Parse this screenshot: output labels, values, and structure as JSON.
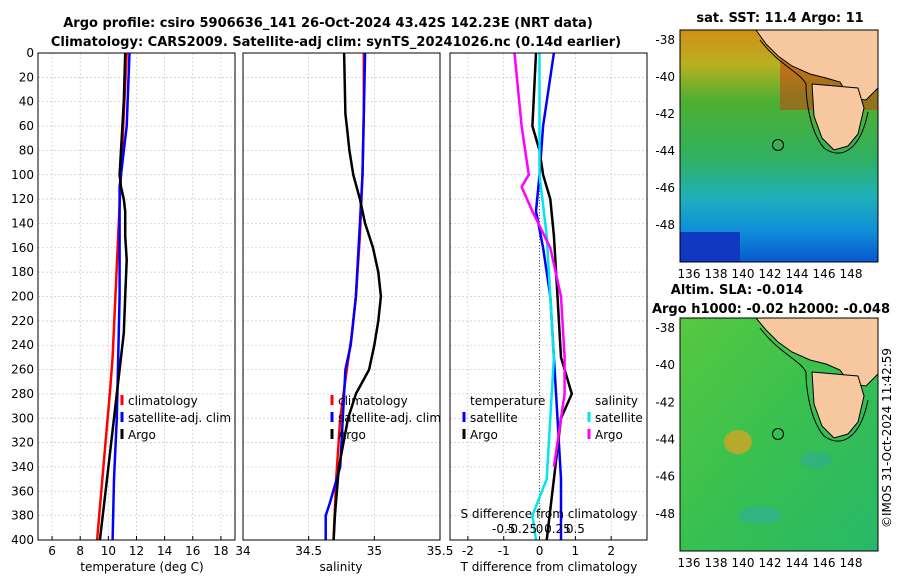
{
  "header": {
    "line1": "Argo profile: csiro 5906636_141 26-Oct-2024 43.42S 142.23E (NRT data)",
    "line2": "Climatology: CARS2009. Satellite-adj clim: synTS_20241026.nc (0.14d earlier)"
  },
  "colors": {
    "climatology": "#ff0000",
    "satellite": "#0000ff",
    "argo": "#000000",
    "satellite_s": "#00e5ee",
    "argo_s": "#ff00ff"
  },
  "chart_data": [
    {
      "type": "line",
      "xlabel": "temperature (deg C)",
      "ylabel": "",
      "xlim": [
        5,
        19
      ],
      "ylim": [
        0,
        400
      ],
      "xticks": [
        6,
        8,
        10,
        12,
        14,
        16,
        18
      ],
      "yticks": [
        0,
        20,
        40,
        60,
        80,
        100,
        120,
        140,
        160,
        180,
        200,
        220,
        240,
        260,
        280,
        300,
        320,
        340,
        360,
        380,
        400
      ],
      "legend": [
        "climatology",
        "satellite-adj. clim",
        "Argo"
      ],
      "series": [
        {
          "name": "climatology",
          "color": "#ff0000",
          "depth": [
            0,
            50,
            100,
            150,
            200,
            250,
            280,
            320,
            360,
            400
          ],
          "values": [
            11.3,
            11.1,
            10.9,
            10.7,
            10.5,
            10.3,
            10.1,
            9.8,
            9.5,
            9.2
          ]
        },
        {
          "name": "satellite-adj. clim",
          "color": "#0000ff",
          "depth": [
            0,
            60,
            100,
            110,
            130,
            160,
            200,
            250,
            300,
            350,
            400
          ],
          "values": [
            11.5,
            11.3,
            10.9,
            10.8,
            10.8,
            10.8,
            10.8,
            10.7,
            10.6,
            10.4,
            10.3
          ]
        },
        {
          "name": "Argo",
          "color": "#000000",
          "depth": [
            0,
            40,
            80,
            100,
            110,
            120,
            130,
            150,
            170,
            200,
            230,
            260,
            300,
            350,
            400
          ],
          "values": [
            11.2,
            11.1,
            10.9,
            10.8,
            10.9,
            11.1,
            11.2,
            11.2,
            11.3,
            11.2,
            11.1,
            10.8,
            10.4,
            9.9,
            9.4
          ]
        }
      ]
    },
    {
      "type": "line",
      "xlabel": "salinity",
      "ylabel": "",
      "xlim": [
        34,
        35.5
      ],
      "ylim": [
        0,
        400
      ],
      "xticks": [
        34,
        34.5,
        35,
        35.5
      ],
      "yticks": [
        0,
        20,
        40,
        60,
        80,
        100,
        120,
        140,
        160,
        180,
        200,
        220,
        240,
        260,
        280,
        300,
        320,
        340,
        360,
        380,
        400
      ],
      "legend": [
        "climatology",
        "satellite-adj. clim",
        "Argo"
      ],
      "series": [
        {
          "name": "climatology",
          "color": "#ff0000",
          "depth": [
            0,
            50,
            100,
            150,
            200,
            230,
            260,
            300,
            350,
            400
          ],
          "values": [
            34.92,
            34.92,
            34.91,
            34.89,
            34.86,
            34.83,
            34.79,
            34.74,
            34.71,
            34.69
          ]
        },
        {
          "name": "satellite-adj. clim",
          "color": "#0000ff",
          "depth": [
            0,
            50,
            100,
            140,
            200,
            240,
            260,
            300,
            340,
            370,
            380,
            400
          ],
          "values": [
            34.93,
            34.92,
            34.91,
            34.89,
            34.86,
            34.82,
            34.78,
            34.76,
            34.74,
            34.66,
            34.63,
            34.63
          ]
        },
        {
          "name": "Argo",
          "color": "#000000",
          "depth": [
            0,
            50,
            60,
            80,
            100,
            120,
            140,
            160,
            180,
            200,
            220,
            240,
            260,
            280,
            300,
            340,
            380,
            400
          ],
          "values": [
            34.77,
            34.78,
            34.79,
            34.81,
            34.84,
            34.89,
            34.93,
            34.99,
            35.03,
            35.05,
            35.03,
            35.0,
            34.96,
            34.86,
            34.8,
            34.73,
            34.7,
            34.69
          ]
        }
      ]
    },
    {
      "type": "line",
      "xlabel": "T difference from climatology",
      "ylabel": "",
      "xlim": [
        -2.5,
        3
      ],
      "ylim": [
        0,
        400
      ],
      "xticks": [
        -2,
        -1,
        0,
        1,
        2
      ],
      "secondary_xlabel": "S difference from climatology",
      "secondary_xticks": [
        "-0.5",
        "-0.25",
        "0",
        "0.25",
        "0.5"
      ],
      "yticks": [
        0,
        20,
        40,
        60,
        80,
        100,
        120,
        140,
        160,
        180,
        200,
        220,
        240,
        260,
        280,
        300,
        320,
        340,
        360,
        380,
        400
      ],
      "legend_left": [
        "temperature",
        "satellite",
        "Argo"
      ],
      "legend_right": [
        "salinity",
        "satellite",
        "Argo"
      ],
      "series": [
        {
          "name": "temperature satellite",
          "color": "#0000ff",
          "depth": [
            0,
            60,
            100,
            130,
            160,
            200,
            250,
            300,
            350,
            400
          ],
          "values": [
            0.4,
            0.1,
            0.0,
            -0.1,
            0.1,
            0.3,
            0.4,
            0.5,
            0.6,
            0.6
          ]
        },
        {
          "name": "temperature Argo",
          "color": "#000000",
          "depth": [
            0,
            60,
            80,
            100,
            120,
            150,
            200,
            250,
            280,
            300,
            350,
            400
          ],
          "values": [
            -0.1,
            -0.2,
            0.0,
            0.1,
            0.3,
            0.4,
            0.5,
            0.6,
            0.9,
            0.6,
            0.4,
            0.2
          ]
        },
        {
          "name": "salinity satellite",
          "color": "#00e5ee",
          "depth": [
            0,
            60,
            100,
            150,
            200,
            250,
            300,
            350,
            380,
            400
          ],
          "values": [
            0.0,
            0.0,
            0.0,
            0.2,
            0.3,
            0.4,
            0.3,
            0.2,
            -0.2,
            -0.1
          ]
        },
        {
          "name": "salinity Argo",
          "color": "#ff00ff",
          "depth": [
            0,
            60,
            80,
            100,
            110,
            130,
            160,
            200,
            250,
            280,
            300,
            320,
            340
          ],
          "values": [
            -0.7,
            -0.5,
            -0.4,
            -0.3,
            -0.5,
            -0.2,
            0.3,
            0.6,
            0.7,
            0.7,
            0.6,
            0.5,
            0.4
          ]
        }
      ]
    }
  ],
  "maps": [
    {
      "title": "sat. SST: 11.4 Argo: 11",
      "xticks": [
        "136",
        "138",
        "140",
        "142",
        "144",
        "146",
        "148"
      ],
      "yticks": [
        "-38",
        "-40",
        "-42",
        "-44",
        "-46",
        "-48"
      ]
    },
    {
      "title_line1": "Altim. SLA: -0.014",
      "title_line2": "Argo h1000: -0.02 h2000: -0.048",
      "xticks": [
        "136",
        "138",
        "140",
        "142",
        "144",
        "146",
        "148"
      ],
      "yticks": [
        "-38",
        "-40",
        "-42",
        "-44",
        "-46",
        "-48"
      ]
    }
  ],
  "watermark": "©IMOS 31-Oct-2024 11:42:59"
}
